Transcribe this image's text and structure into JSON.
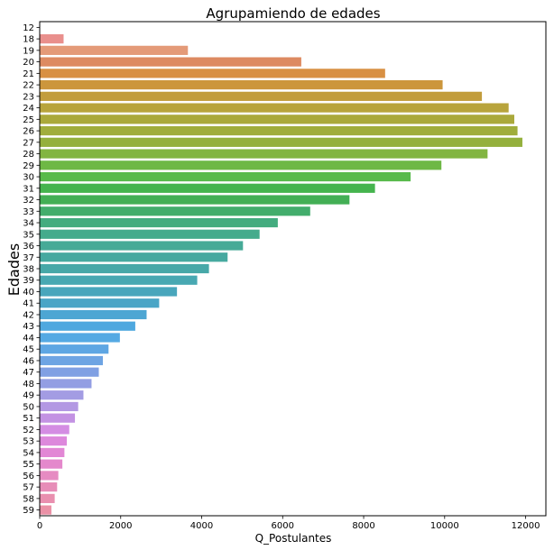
{
  "chart_data": {
    "type": "bar",
    "orientation": "horizontal",
    "title": "Agrupamiendo de edades",
    "xlabel": "Q_Postulantes",
    "ylabel": "Edades",
    "xlim": [
      0,
      12500
    ],
    "x_ticks": [
      0,
      2000,
      4000,
      6000,
      8000,
      10000,
      12000
    ],
    "grid": false,
    "categories": [
      "12",
      "18",
      "19",
      "20",
      "21",
      "22",
      "23",
      "24",
      "25",
      "26",
      "27",
      "28",
      "29",
      "30",
      "31",
      "32",
      "33",
      "34",
      "35",
      "36",
      "37",
      "38",
      "39",
      "40",
      "41",
      "42",
      "43",
      "44",
      "45",
      "46",
      "47",
      "48",
      "49",
      "50",
      "51",
      "52",
      "53",
      "54",
      "55",
      "56",
      "57",
      "58",
      "59"
    ],
    "values": [
      2,
      590,
      3660,
      6460,
      8530,
      9950,
      10920,
      11580,
      11720,
      11800,
      11920,
      11060,
      9920,
      9160,
      8280,
      7650,
      6680,
      5880,
      5430,
      5020,
      4640,
      4180,
      3890,
      3390,
      2950,
      2640,
      2360,
      1980,
      1700,
      1560,
      1460,
      1280,
      1080,
      950,
      870,
      730,
      670,
      610,
      560,
      460,
      430,
      370,
      290
    ],
    "colors": [
      "#e98f8c",
      "#e98f8c",
      "#e49a78",
      "#dd8a61",
      "#d89043",
      "#cc963c",
      "#c29d3c",
      "#b8a43c",
      "#aaa93b",
      "#a0ad3c",
      "#94b03d",
      "#82b541",
      "#6eb845",
      "#58ba4b",
      "#45b44e",
      "#43af55",
      "#43ad6c",
      "#44ac7f",
      "#45ab8c",
      "#46aa97",
      "#46a9a0",
      "#47a8a8",
      "#48a8b2",
      "#49a6bc",
      "#4aa5c6",
      "#4da6d3",
      "#4fa8df",
      "#55a9e3",
      "#5ea6e3",
      "#6ea4e3",
      "#80a0e3",
      "#939ee3",
      "#a39ce3",
      "#b398e3",
      "#c392e3",
      "#d48de3",
      "#dd88dc",
      "#e287d5",
      "#e488cc",
      "#e68bc2",
      "#e78db8",
      "#e98faf",
      "#ea91a6"
    ]
  }
}
